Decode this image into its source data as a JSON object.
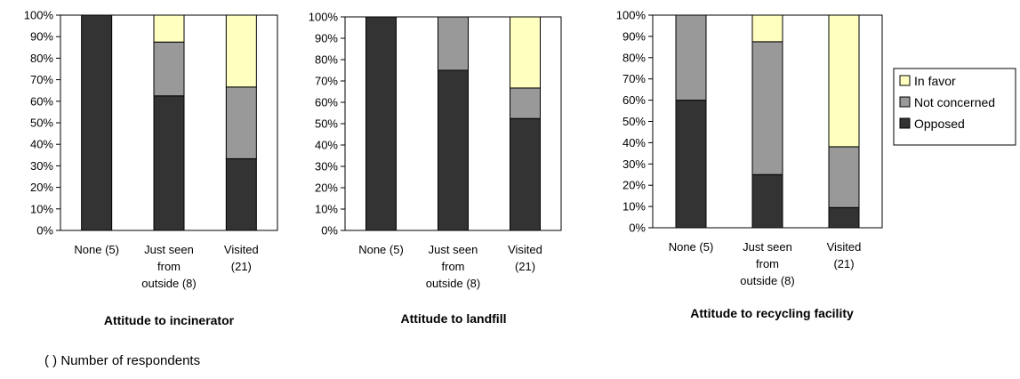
{
  "chart_data": [
    {
      "type": "bar",
      "stacked": true,
      "title": "Attitude to incinerator",
      "categories": [
        "None (5)",
        "Just seen from outside (8)",
        "Visited (21)"
      ],
      "series": [
        {
          "name": "Opposed",
          "values": [
            100,
            62.5,
            33.3
          ]
        },
        {
          "name": "Not concerned",
          "values": [
            0,
            25,
            33.3
          ]
        },
        {
          "name": "In favor",
          "values": [
            0,
            12.5,
            33.4
          ]
        }
      ],
      "ylim": [
        0,
        100
      ],
      "yticks": [
        "0%",
        "10%",
        "20%",
        "30%",
        "40%",
        "50%",
        "60%",
        "70%",
        "80%",
        "90%",
        "100%"
      ],
      "grid": false
    },
    {
      "type": "bar",
      "stacked": true,
      "title": "Attitude to landfill",
      "categories": [
        "None (5)",
        "Just seen from outside (8)",
        "Visited (21)"
      ],
      "series": [
        {
          "name": "Opposed",
          "values": [
            100,
            75,
            52.4
          ]
        },
        {
          "name": "Not concerned",
          "values": [
            0,
            25,
            14.3
          ]
        },
        {
          "name": "In favor",
          "values": [
            0,
            0,
            33.3
          ]
        }
      ],
      "ylim": [
        0,
        100
      ],
      "yticks": [
        "0%",
        "10%",
        "20%",
        "30%",
        "40%",
        "50%",
        "60%",
        "70%",
        "80%",
        "90%",
        "100%"
      ],
      "grid": false
    },
    {
      "type": "bar",
      "stacked": true,
      "title": "Attitude to recycling facility",
      "categories": [
        "None (5)",
        "Just seen from outside (8)",
        "Visited (21)"
      ],
      "series": [
        {
          "name": "Opposed",
          "values": [
            60,
            25,
            9.5
          ]
        },
        {
          "name": "Not concerned",
          "values": [
            40,
            62.5,
            28.6
          ]
        },
        {
          "name": "In favor",
          "values": [
            0,
            12.5,
            61.9
          ]
        }
      ],
      "ylim": [
        0,
        100
      ],
      "yticks": [
        "0%",
        "10%",
        "20%",
        "30%",
        "40%",
        "50%",
        "60%",
        "70%",
        "80%",
        "90%",
        "100%"
      ],
      "grid": false,
      "legend": "right"
    }
  ],
  "category_lines": [
    [
      "None (5)"
    ],
    [
      "Just seen",
      "from",
      "outside (8)"
    ],
    [
      "Visited",
      "(21)"
    ]
  ],
  "legend": {
    "items": [
      {
        "label": "In favor",
        "color": "#ffffc0"
      },
      {
        "label": "Not concerned",
        "color": "#999999"
      },
      {
        "label": "Opposed",
        "color": "#333333"
      }
    ]
  },
  "colors": {
    "Opposed": "#333333",
    "Not concerned": "#999999",
    "In favor": "#ffffc0"
  },
  "footnote": "( ) Number of respondents"
}
